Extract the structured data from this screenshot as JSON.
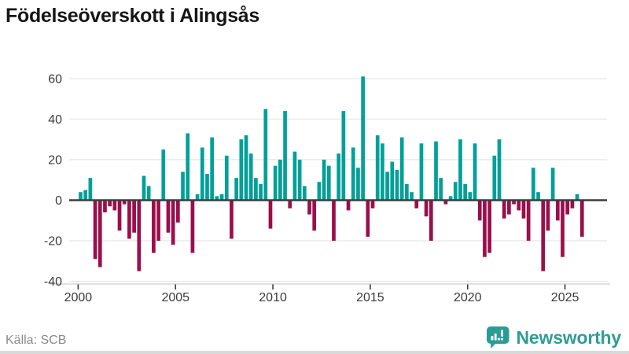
{
  "chart_data": {
    "type": "bar",
    "title": "Födelseöverskott i Alingsås",
    "x_unit": "quarter",
    "start": "2000Q1",
    "end": "2025Q4",
    "values": [
      4,
      5,
      11,
      -29,
      -33,
      -6,
      -3,
      -5,
      -15,
      -2,
      -19,
      -16,
      -35,
      12,
      7,
      -26,
      -20,
      25,
      -16,
      -22,
      -11,
      14,
      33,
      -26,
      3,
      26,
      13,
      31,
      2,
      3,
      22,
      -19,
      11,
      30,
      32,
      23,
      11,
      8,
      45,
      -14,
      17,
      20,
      44,
      -4,
      24,
      20,
      7,
      -7,
      -15,
      9,
      20,
      17,
      -20,
      23,
      44,
      -5,
      26,
      16,
      61,
      -18,
      -4,
      32,
      28,
      14,
      19,
      15,
      31,
      8,
      4,
      -4,
      28,
      -8,
      -20,
      29,
      11,
      -2,
      2,
      9,
      30,
      8,
      4,
      28,
      -10,
      -28,
      -26,
      22,
      30,
      -9,
      -7,
      -2,
      -5,
      -9,
      -20,
      16,
      4,
      -35,
      -15,
      16,
      -10,
      -28,
      -7,
      -4,
      3,
      -18
    ],
    "xticks": [
      "2000",
      "2005",
      "2010",
      "2015",
      "2020",
      "2025"
    ],
    "yticks": [
      "60",
      "40",
      "20",
      "0",
      "-20",
      "-40"
    ],
    "ylim": [
      -41,
      64
    ],
    "grid": "horizontal",
    "legend": "none",
    "positive_color": "#00a099",
    "negative_color": "#9b0e4b",
    "zero_line_color": "#3d3d3d",
    "grid_color": "#e7e7e7"
  },
  "footer": {
    "source": "Källa: SCB",
    "brand": "Newsworthy",
    "brand_color": "#2f9d95"
  }
}
